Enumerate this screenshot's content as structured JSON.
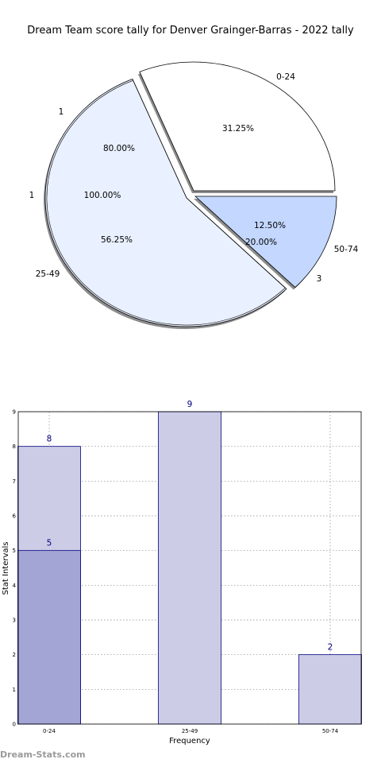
{
  "title": "Dream Team score tally for Denver Grainger-Barras - 2022 tally",
  "watermark": "Dream-Stats.com",
  "colors": {
    "outer_fill": "#ffffff",
    "blue_mid": "#c3d7ff",
    "blue_light": "#e9f0ff",
    "bar_light": "#cccce6",
    "bar_dark": "#a3a6d4",
    "bar_edge": "#000080",
    "label_color": "#000080"
  },
  "chart_data": [
    {
      "type": "pie",
      "title": "Dream Team score tally for Denver Grainger-Barras - 2022 tally",
      "outer_ring": {
        "labels": [
          "0-24",
          "25-49",
          "50-74"
        ],
        "values": [
          5,
          9,
          2
        ],
        "percent_labels": [
          "31.25%",
          "56.25%",
          "12.50%"
        ]
      },
      "inner_ring": {
        "labels": [
          "1",
          "1",
          "3"
        ],
        "percent_labels": [
          "80.00%",
          "100.00%",
          "20.00%"
        ]
      }
    },
    {
      "type": "bar",
      "categories": [
        "0-24",
        "25-49",
        "50-74"
      ],
      "series": [
        {
          "values": [
            8,
            9,
            2
          ]
        },
        {
          "values": [
            5,
            0,
            0
          ]
        }
      ],
      "value_labels": [
        "8",
        "9",
        "2",
        "5"
      ],
      "xlabel": "Frequency",
      "ylabel": "Stat Intervals",
      "ylim": [
        0,
        9
      ],
      "yticks": [
        "0",
        "1",
        "2",
        "3",
        "4",
        "5",
        "6",
        "7",
        "8",
        "9"
      ],
      "grid": true
    }
  ]
}
